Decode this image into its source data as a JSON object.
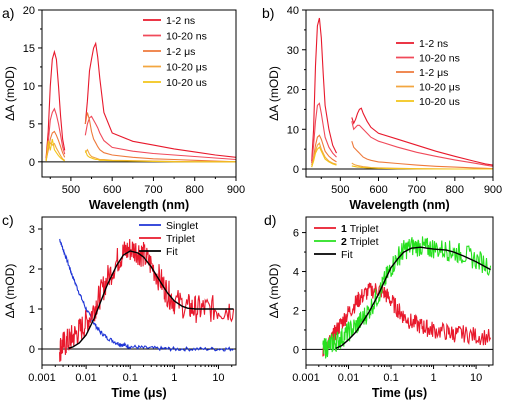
{
  "chart_data": [
    {
      "panel": "a)",
      "type": "line",
      "xlabel": "Wavelength (nm)",
      "ylabel": "ΔA (mOD)",
      "xlim": [
        430,
        900
      ],
      "ylim": [
        -2,
        20
      ],
      "xticks": [
        500,
        600,
        700,
        800,
        900
      ],
      "yticks": [
        0,
        5,
        10,
        15,
        20
      ],
      "legend_position": "top-right",
      "gap": [
        485,
        535
      ],
      "series": [
        {
          "name": "1-2 ns",
          "color": "#e8192c",
          "x": [
            440,
            445,
            450,
            455,
            460,
            465,
            470,
            475,
            480,
            485,
            535,
            540,
            545,
            550,
            555,
            560,
            565,
            570,
            580,
            600,
            650,
            700,
            750,
            800,
            850,
            900
          ],
          "y": [
            0.5,
            4,
            10,
            13.5,
            14.5,
            13.5,
            10,
            6,
            3,
            1.5,
            5,
            8,
            12,
            13.5,
            15,
            15.6,
            13.8,
            11,
            6.5,
            3.8,
            2.7,
            2.2,
            1.7,
            1.3,
            0.9,
            0.6
          ]
        },
        {
          "name": "10-20 ns",
          "color": "#f04a5a",
          "x": [
            440,
            445,
            450,
            455,
            460,
            465,
            470,
            475,
            480,
            485,
            535,
            540,
            545,
            550,
            555,
            560,
            565,
            570,
            580,
            600,
            650,
            700,
            750,
            800,
            850,
            900
          ],
          "y": [
            0.3,
            2.5,
            5.5,
            6.5,
            7,
            6.2,
            5,
            3.5,
            2,
            1,
            3.5,
            5,
            5.8,
            6,
            5.5,
            5,
            4.5,
            3.8,
            2.8,
            1.9,
            1.4,
            1.1,
            0.9,
            0.7,
            0.5,
            0.3
          ]
        },
        {
          "name": "1-2 μs",
          "color": "#ee7a3c",
          "x": [
            440,
            445,
            450,
            455,
            460,
            465,
            470,
            475,
            480,
            485,
            535,
            540,
            545,
            550,
            555,
            560,
            565,
            570,
            580,
            600,
            650,
            700,
            750,
            800,
            850,
            900
          ],
          "y": [
            0.2,
            1.5,
            3,
            3.8,
            4,
            3.5,
            2.8,
            2,
            1.2,
            0.6,
            5,
            6.5,
            5.5,
            4,
            3,
            2.5,
            2,
            1.6,
            1.2,
            0.9,
            0.6,
            0.4,
            0.3,
            0.2,
            0.1,
            0
          ]
        },
        {
          "name": "10-20 μs",
          "color": "#f3a640",
          "x": [
            440,
            445,
            450,
            455,
            460,
            465,
            470,
            475,
            480,
            485,
            535,
            540,
            545,
            550,
            555,
            560,
            565,
            570,
            580,
            600,
            650,
            700,
            750,
            800,
            850,
            900
          ],
          "y": [
            0.1,
            1.8,
            2.5,
            2.2,
            2.4,
            1.8,
            1.3,
            0.8,
            0.4,
            0.2,
            1.2,
            1.6,
            1,
            0.7,
            0.6,
            0.5,
            0.4,
            0.3,
            0.3,
            0.2,
            0.15,
            0.1,
            0.05,
            0,
            0,
            0
          ]
        },
        {
          "name": "10-20 us",
          "color": "#f2c419",
          "x": [
            440,
            445,
            450,
            455,
            460,
            465,
            470,
            475,
            480,
            485,
            535,
            540,
            545,
            550,
            555,
            560,
            565,
            570,
            580,
            600,
            650,
            700,
            750,
            800,
            850,
            900
          ],
          "y": [
            0.1,
            2.8,
            1.5,
            3,
            1.6,
            1.2,
            0.8,
            0.5,
            0.3,
            0.1,
            1.5,
            0.8,
            0.6,
            0.5,
            0.4,
            0.3,
            0.3,
            0.2,
            0.2,
            0.15,
            0.1,
            0.05,
            0,
            0,
            0,
            0
          ]
        }
      ]
    },
    {
      "panel": "b)",
      "type": "line",
      "xlabel": "Wavelength (nm)",
      "ylabel": "ΔA (mOD)",
      "xlim": [
        410,
        900
      ],
      "ylim": [
        -2,
        40
      ],
      "xticks": [
        500,
        600,
        700,
        800,
        900
      ],
      "yticks": [
        0,
        10,
        20,
        30,
        40
      ],
      "legend_position": "top-right",
      "gap": [
        495,
        530
      ],
      "series": [
        {
          "name": "1-2 ns",
          "color": "#e8192c",
          "x": [
            425,
            430,
            435,
            440,
            445,
            450,
            455,
            460,
            470,
            480,
            490,
            530,
            535,
            540,
            545,
            550,
            555,
            560,
            570,
            580,
            600,
            650,
            700,
            750,
            800,
            850,
            880,
            900
          ],
          "y": [
            2,
            10,
            26,
            36,
            38,
            33,
            24,
            16,
            10,
            6,
            4,
            13,
            11.5,
            12.5,
            14,
            15,
            15.3,
            14,
            12,
            10.5,
            9,
            7.5,
            6,
            4.5,
            3.2,
            2,
            1.3,
            1
          ]
        },
        {
          "name": "10-20 ns",
          "color": "#f04a5a",
          "x": [
            425,
            430,
            435,
            440,
            445,
            450,
            455,
            460,
            470,
            480,
            490,
            530,
            535,
            540,
            545,
            550,
            555,
            560,
            570,
            580,
            600,
            650,
            700,
            750,
            800,
            850,
            880,
            900
          ],
          "y": [
            1.5,
            6,
            12,
            16,
            16.5,
            14,
            11,
            8,
            5.5,
            4,
            3,
            12,
            10,
            10.5,
            11,
            11,
            10.5,
            10,
            9,
            8,
            7,
            5.5,
            4.2,
            3.2,
            2.3,
            1.5,
            1,
            0.7
          ]
        },
        {
          "name": "1-2 μs",
          "color": "#ee7a3c",
          "x": [
            425,
            430,
            435,
            440,
            445,
            450,
            455,
            460,
            470,
            480,
            490,
            530,
            535,
            540,
            545,
            550,
            555,
            560,
            570,
            580,
            600,
            650,
            700,
            750,
            800,
            850,
            880,
            900
          ],
          "y": [
            1,
            3,
            6,
            8,
            8.5,
            7.5,
            6,
            4.5,
            3.2,
            2.4,
            1.8,
            7,
            5.5,
            5,
            4.5,
            4,
            3.5,
            3,
            2.5,
            2.2,
            1.8,
            1.4,
            1,
            0.7,
            0.5,
            0.3,
            0.2,
            0.1
          ]
        },
        {
          "name": "10-20 μs",
          "color": "#f3a640",
          "x": [
            425,
            430,
            435,
            440,
            445,
            450,
            455,
            460,
            470,
            480,
            490,
            530,
            535,
            540,
            545,
            550,
            555,
            560,
            570,
            580,
            600,
            650,
            700,
            750,
            800,
            850,
            880,
            900
          ],
          "y": [
            0.5,
            2.5,
            4.5,
            6,
            6.5,
            5,
            4,
            3,
            2,
            1.5,
            1.2,
            1.5,
            1.2,
            1,
            0.9,
            0.8,
            0.7,
            0.6,
            0.5,
            0.4,
            0.3,
            0.2,
            0.1,
            0.05,
            0,
            0,
            0,
            0
          ]
        },
        {
          "name": "10-20 us",
          "color": "#f2c419",
          "x": [
            425,
            430,
            435,
            440,
            445,
            450,
            455,
            460,
            470,
            480,
            490,
            530,
            535,
            540,
            545,
            550,
            555,
            560,
            570,
            580,
            600,
            650,
            700,
            750,
            800,
            850,
            880,
            900
          ],
          "y": [
            0.5,
            2,
            4,
            5,
            5.5,
            4.5,
            3.5,
            2.5,
            1.8,
            1.3,
            1,
            0.8,
            0.7,
            0.6,
            0.5,
            0.5,
            0.4,
            0.4,
            0.3,
            0.3,
            0.2,
            0.1,
            0.05,
            0,
            0,
            0,
            0,
            0
          ]
        }
      ]
    },
    {
      "panel": "c)",
      "type": "line",
      "xscale": "log",
      "xlabel": "Time (μs)",
      "ylabel": "ΔA (mOD)",
      "xlim": [
        0.001,
        25
      ],
      "ylim": [
        -0.4,
        3.3
      ],
      "xticks": [
        0.001,
        0.01,
        0.1,
        1,
        10
      ],
      "xticklabels": [
        "0.001",
        "0.01",
        "0.1",
        "1",
        "10"
      ],
      "yticks": [
        0,
        1,
        2,
        3
      ],
      "legend_position": "top-right",
      "series": [
        {
          "name": "Singlet",
          "color": "#1f35d6",
          "noise": 0.05,
          "x": [
            0.0025,
            0.003,
            0.004,
            0.005,
            0.007,
            0.01,
            0.015,
            0.02,
            0.03,
            0.05,
            0.07,
            0.1,
            0.2,
            0.5,
            1,
            3,
            10,
            22
          ],
          "y": [
            2.75,
            2.5,
            2.1,
            1.8,
            1.4,
            1.0,
            0.65,
            0.45,
            0.28,
            0.15,
            0.1,
            0.06,
            0.03,
            0.01,
            0,
            0,
            0,
            0
          ]
        },
        {
          "name": "Triplet",
          "color": "#e8192c",
          "noise": 0.35,
          "x": [
            0.0025,
            0.003,
            0.004,
            0.005,
            0.007,
            0.01,
            0.015,
            0.02,
            0.03,
            0.05,
            0.07,
            0.1,
            0.15,
            0.2,
            0.3,
            0.5,
            0.7,
            1,
            2,
            3,
            5,
            10,
            22
          ],
          "y": [
            0,
            0.1,
            0.2,
            0.3,
            0.45,
            0.65,
            1.0,
            1.3,
            1.75,
            2.2,
            2.4,
            2.5,
            2.45,
            2.35,
            2.1,
            1.7,
            1.4,
            1.2,
            1.05,
            1,
            1,
            1,
            1
          ]
        },
        {
          "name": "Fit",
          "color": "#000000",
          "noise": 0,
          "x": [
            0.004,
            0.005,
            0.007,
            0.01,
            0.015,
            0.02,
            0.03,
            0.05,
            0.07,
            0.1,
            0.15,
            0.2,
            0.3,
            0.5,
            0.7,
            1,
            1.5,
            2,
            3,
            5,
            10,
            22
          ],
          "y": [
            0.02,
            0.05,
            0.15,
            0.35,
            0.75,
            1.1,
            1.6,
            2.1,
            2.35,
            2.45,
            2.4,
            2.3,
            2.05,
            1.65,
            1.4,
            1.2,
            1.07,
            1.02,
            1,
            1,
            1,
            1
          ]
        }
      ]
    },
    {
      "panel": "d)",
      "type": "line",
      "xscale": "log",
      "xlabel": "Time (μs)",
      "ylabel": "ΔA (mOD)",
      "xlim": [
        0.001,
        25
      ],
      "ylim": [
        -0.8,
        6.8
      ],
      "xticks": [
        0.001,
        0.01,
        0.1,
        1,
        10
      ],
      "xticklabels": [
        "0.001",
        "0.01",
        "0.1",
        "1",
        "10"
      ],
      "yticks": [
        0,
        2,
        4,
        6
      ],
      "legend_position": "top-left",
      "series": [
        {
          "name": "1 Triplet",
          "color": "#e8192c",
          "noise": 0.45,
          "x": [
            0.0025,
            0.003,
            0.004,
            0.005,
            0.007,
            0.01,
            0.015,
            0.02,
            0.03,
            0.05,
            0.07,
            0.1,
            0.15,
            0.2,
            0.3,
            0.5,
            0.7,
            1,
            2,
            3,
            5,
            10,
            22
          ],
          "y": [
            0,
            0.2,
            0.5,
            0.9,
            1.4,
            1.9,
            2.4,
            2.7,
            3.0,
            3.1,
            2.9,
            2.5,
            2.0,
            1.7,
            1.4,
            1.2,
            1.1,
            1.0,
            0.9,
            0.8,
            0.8,
            0.7,
            0.6
          ]
        },
        {
          "name": "2 Triplet",
          "color": "#27e01f",
          "noise": 0.55,
          "x": [
            0.0025,
            0.003,
            0.004,
            0.005,
            0.007,
            0.01,
            0.015,
            0.02,
            0.03,
            0.05,
            0.07,
            0.1,
            0.15,
            0.2,
            0.3,
            0.5,
            0.7,
            1,
            2,
            3,
            5,
            10,
            22
          ],
          "y": [
            0,
            0.1,
            0.3,
            0.4,
            0.6,
            0.9,
            1.2,
            1.5,
            2.0,
            2.8,
            3.5,
            4.2,
            4.8,
            5.1,
            5.3,
            5.3,
            5.2,
            5.2,
            5.1,
            5.0,
            4.9,
            4.6,
            4.3
          ]
        },
        {
          "name": "Fit",
          "color": "#000000",
          "noise": 0,
          "x": [
            0.005,
            0.007,
            0.01,
            0.015,
            0.02,
            0.03,
            0.05,
            0.07,
            0.1,
            0.15,
            0.2,
            0.3,
            0.5,
            0.7,
            1,
            2,
            3,
            5,
            10,
            22
          ],
          "y": [
            0.05,
            0.2,
            0.5,
            0.9,
            1.3,
            1.9,
            2.8,
            3.5,
            4.2,
            4.7,
            5.0,
            5.2,
            5.25,
            5.2,
            5.15,
            5.1,
            5.0,
            4.8,
            4.5,
            4.1
          ]
        }
      ]
    }
  ]
}
